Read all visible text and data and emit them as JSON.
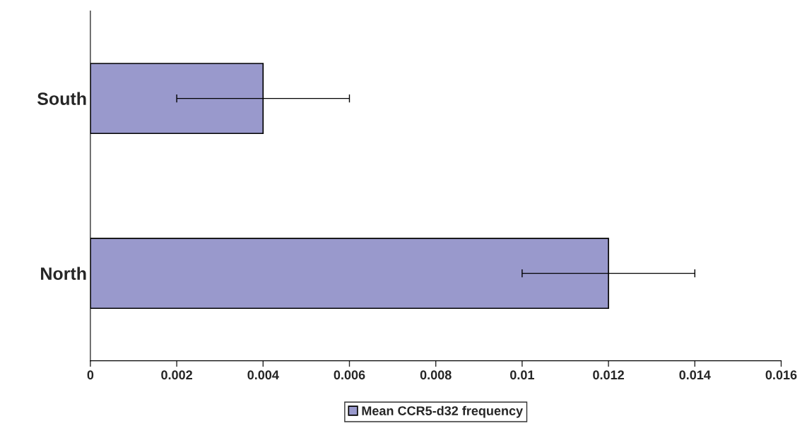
{
  "chart_data": {
    "type": "bar",
    "orientation": "horizontal",
    "categories": [
      "South",
      "North"
    ],
    "series": [
      {
        "name": "Mean CCR5-d32 frequency",
        "color": "#9999cc",
        "values": [
          0.004,
          0.012
        ],
        "errors": [
          0.002,
          0.002
        ]
      }
    ],
    "xlim": [
      0,
      0.016
    ],
    "xticks": [
      0,
      0.002,
      0.004,
      0.006,
      0.008,
      0.01,
      0.012,
      0.014,
      0.016
    ],
    "legend": "bottom",
    "grid": false
  }
}
